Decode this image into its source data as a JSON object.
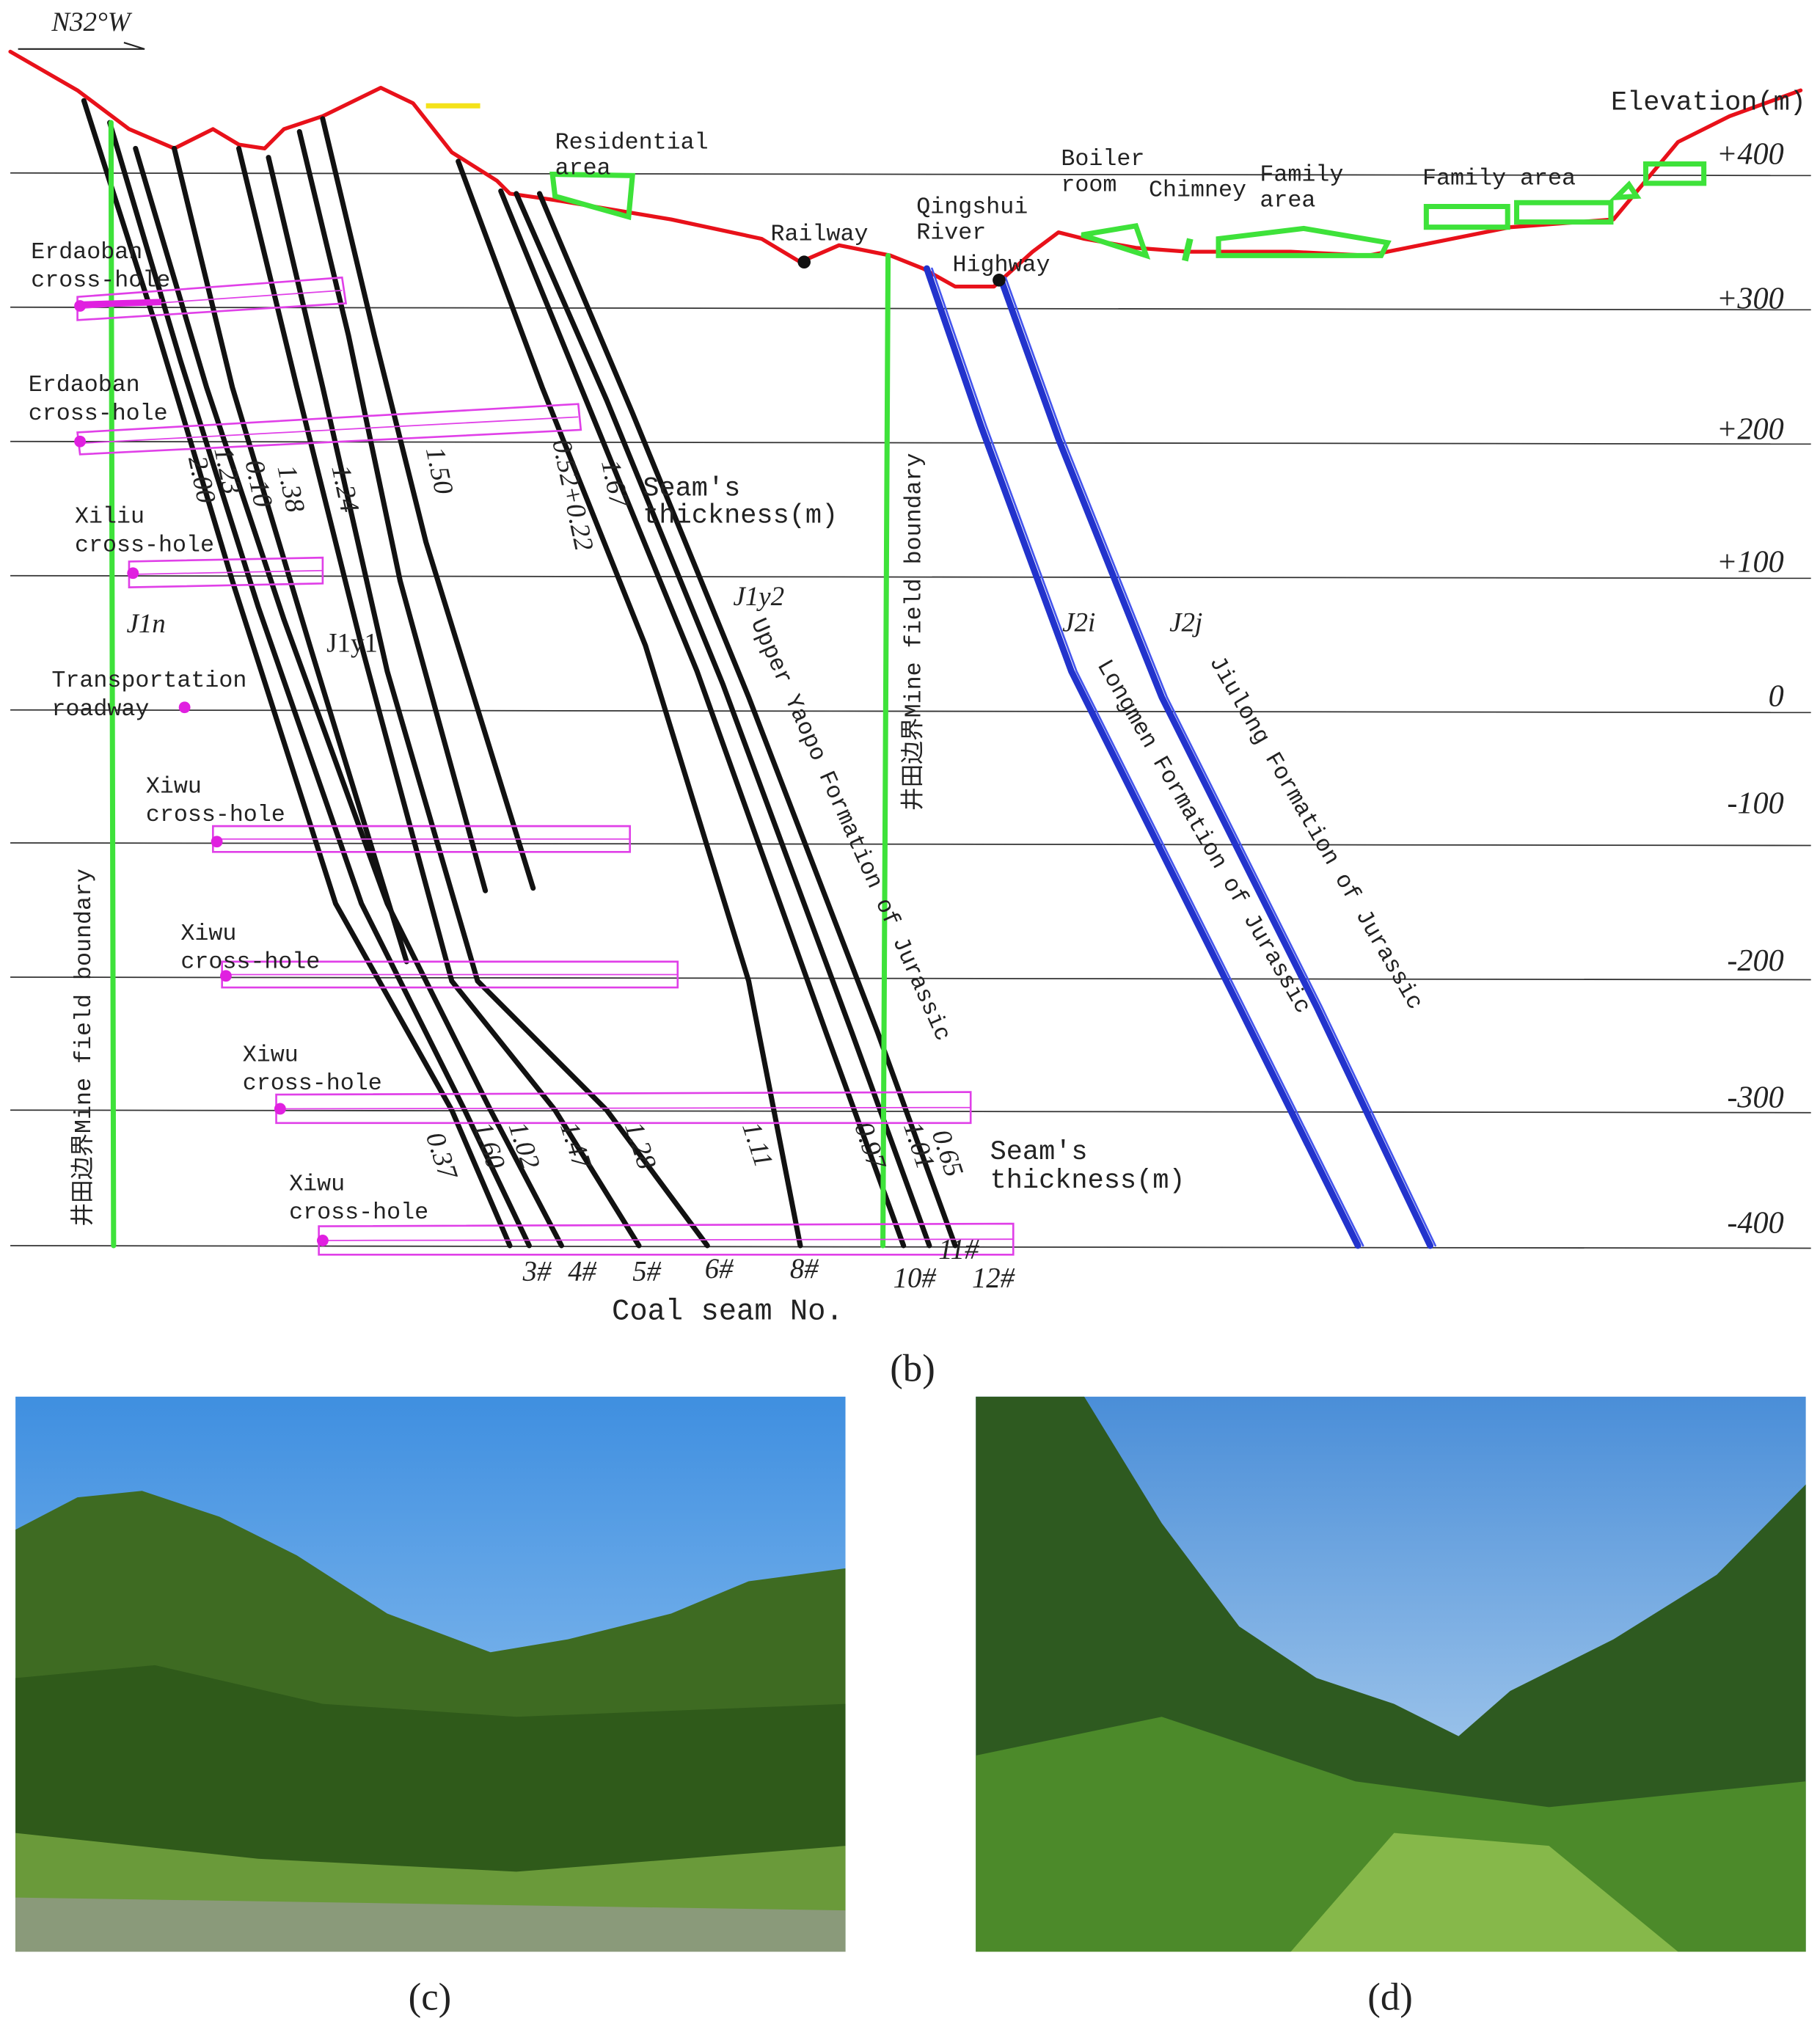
{
  "section": {
    "compass": "N32°W",
    "elevation_title": "Elevation(m)",
    "elevation_labels": [
      "+400",
      "+300",
      "+200",
      "+100",
      "0",
      "-100",
      "-200",
      "-300",
      "-400"
    ],
    "surface_labels": [
      [
        "Residential",
        "area"
      ],
      [
        "Railway"
      ],
      [
        "Qingshui",
        "River"
      ],
      [
        "Highway"
      ],
      [
        "Boiler",
        "room"
      ],
      [
        "Chimney"
      ],
      [
        "Family",
        "area"
      ],
      [
        "Family area"
      ]
    ],
    "cross_holes": [
      [
        "Erdaoban",
        "cross-hole"
      ],
      [
        "Erdaoban",
        "cross-hole"
      ],
      [
        "Xiliu",
        "cross-hole"
      ],
      [
        "Transportation",
        "roadway"
      ],
      [
        "Xiwu",
        "cross-hole"
      ],
      [
        "Xiwu",
        "cross-hole"
      ],
      [
        "Xiwu",
        "cross-hole"
      ],
      [
        "Xiwu",
        "cross-hole"
      ]
    ],
    "formation_codes": [
      "J1n",
      "J1y1",
      "J1y2",
      "J2i",
      "J2j"
    ],
    "formations": [
      "Upper Yaopo Formation of Jurassic",
      "Longmen Formation of Jurassic",
      "Jiulong Formation of Jurassic"
    ],
    "boundary_labels": [
      "井田边界Mine field boundary",
      "井田边界Mine field boundary"
    ],
    "thickness_titles": [
      [
        "Seam's",
        "thickness(m)"
      ],
      [
        "Seam's",
        "thickness(m)"
      ]
    ],
    "upper_thickness": [
      "2.00",
      "1.23",
      "0.10",
      "1.38",
      "1.24",
      "1.50",
      "0.52+0.22",
      "1.67"
    ],
    "lower_thickness": [
      "0.37",
      "1.60",
      "1.02",
      "1.47",
      "1.28",
      "1.11",
      "0.97",
      "1.01",
      "0.65"
    ],
    "seam_numbers": [
      "3#",
      "4#",
      "5#",
      "6#",
      "8#",
      "10#",
      "11#",
      "12#"
    ],
    "seam_axis": "Coal seam No.",
    "panel_label": "(b)"
  },
  "photos": [
    {
      "label": "(c)"
    },
    {
      "label": "(d)"
    }
  ]
}
